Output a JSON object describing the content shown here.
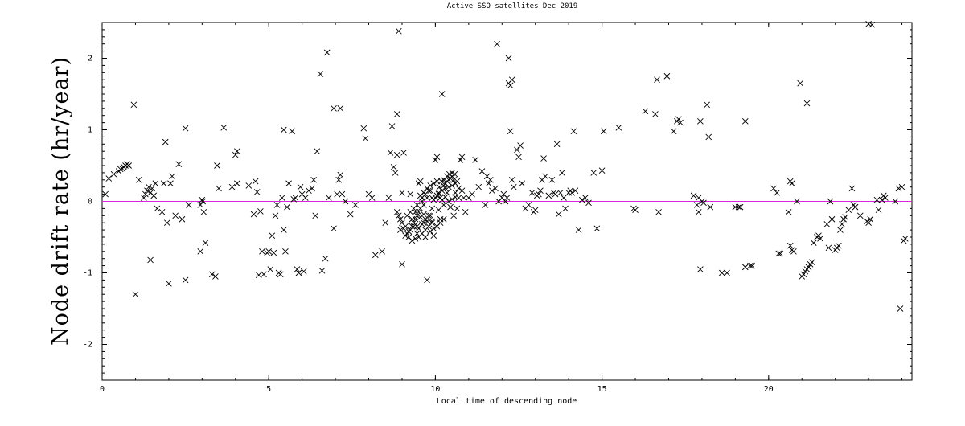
{
  "chart_data": {
    "type": "scatter",
    "title": "Active SSO satellites Dec 2019",
    "xlabel": "Local time of descending node",
    "ylabel": "Node drift rate (hr/year)",
    "xlim": [
      0,
      24.3
    ],
    "ylim": [
      -2.5,
      2.5
    ],
    "xticks": [
      0,
      5,
      10,
      15,
      20
    ],
    "yticks": [
      -2,
      -1,
      0,
      1,
      2
    ],
    "grid": false,
    "reference_line": {
      "y": 0,
      "color": "#dd22dd"
    },
    "marker": "x",
    "points": [
      [
        0.1,
        0.1
      ],
      [
        0.2,
        0.32
      ],
      [
        0.35,
        0.38
      ],
      [
        0.5,
        0.42
      ],
      [
        0.6,
        0.46
      ],
      [
        0.65,
        0.48
      ],
      [
        0.7,
        0.5
      ],
      [
        0.75,
        0.52
      ],
      [
        0.8,
        0.5
      ],
      [
        0.55,
        0.45
      ],
      [
        0.95,
        1.35
      ],
      [
        1.0,
        -1.3
      ],
      [
        1.1,
        0.3
      ],
      [
        1.25,
        0.05
      ],
      [
        1.3,
        0.1
      ],
      [
        1.35,
        0.15
      ],
      [
        1.4,
        0.2
      ],
      [
        1.45,
        0.12
      ],
      [
        1.5,
        0.18
      ],
      [
        1.55,
        0.08
      ],
      [
        1.6,
        0.25
      ],
      [
        1.45,
        -0.82
      ],
      [
        1.65,
        -0.1
      ],
      [
        1.8,
        -0.15
      ],
      [
        1.9,
        0.83
      ],
      [
        1.95,
        -0.3
      ],
      [
        1.85,
        0.25
      ],
      [
        2.0,
        -1.15
      ],
      [
        2.05,
        0.25
      ],
      [
        2.1,
        0.35
      ],
      [
        2.2,
        -0.2
      ],
      [
        2.3,
        0.52
      ],
      [
        2.4,
        -0.25
      ],
      [
        2.5,
        -1.1
      ],
      [
        2.5,
        1.02
      ],
      [
        2.6,
        -0.05
      ],
      [
        2.95,
        -0.05
      ],
      [
        3.0,
        0.02
      ],
      [
        3.02,
        0.0
      ],
      [
        3.05,
        -0.15
      ],
      [
        2.95,
        -0.7
      ],
      [
        3.1,
        -0.58
      ],
      [
        3.3,
        -1.02
      ],
      [
        3.4,
        -1.05
      ],
      [
        3.45,
        0.5
      ],
      [
        3.5,
        0.18
      ],
      [
        3.65,
        1.03
      ],
      [
        3.9,
        0.2
      ],
      [
        4.0,
        0.65
      ],
      [
        4.05,
        0.7
      ],
      [
        4.05,
        0.25
      ],
      [
        4.4,
        0.22
      ],
      [
        4.6,
        0.28
      ],
      [
        4.65,
        0.13
      ],
      [
        4.55,
        -0.18
      ],
      [
        4.7,
        -1.03
      ],
      [
        4.75,
        -0.14
      ],
      [
        4.8,
        -0.7
      ],
      [
        4.85,
        -1.02
      ],
      [
        4.95,
        -0.72
      ],
      [
        5.0,
        -0.7
      ],
      [
        5.05,
        -0.95
      ],
      [
        5.1,
        -0.48
      ],
      [
        5.15,
        -0.72
      ],
      [
        5.2,
        -0.2
      ],
      [
        5.25,
        -0.05
      ],
      [
        5.3,
        -1.0
      ],
      [
        5.35,
        -1.02
      ],
      [
        5.4,
        0.05
      ],
      [
        5.45,
        -0.4
      ],
      [
        5.45,
        1.0
      ],
      [
        5.5,
        -0.7
      ],
      [
        5.55,
        -0.08
      ],
      [
        5.6,
        0.25
      ],
      [
        5.7,
        0.98
      ],
      [
        5.75,
        0.03
      ],
      [
        5.8,
        0.05
      ],
      [
        5.85,
        -0.95
      ],
      [
        5.9,
        -1.0
      ],
      [
        5.95,
        0.2
      ],
      [
        6.0,
        0.1
      ],
      [
        6.05,
        -0.98
      ],
      [
        6.1,
        0.05
      ],
      [
        6.2,
        0.15
      ],
      [
        6.3,
        0.18
      ],
      [
        6.35,
        0.3
      ],
      [
        6.4,
        -0.2
      ],
      [
        6.45,
        0.7
      ],
      [
        6.55,
        1.78
      ],
      [
        6.6,
        -0.97
      ],
      [
        6.7,
        -0.8
      ],
      [
        6.75,
        2.08
      ],
      [
        6.8,
        0.05
      ],
      [
        6.95,
        1.3
      ],
      [
        6.95,
        -0.38
      ],
      [
        7.05,
        0.1
      ],
      [
        7.1,
        0.3
      ],
      [
        7.15,
        0.37
      ],
      [
        7.2,
        0.1
      ],
      [
        7.15,
        1.3
      ],
      [
        7.3,
        0.0
      ],
      [
        7.45,
        -0.18
      ],
      [
        7.6,
        -0.05
      ],
      [
        7.85,
        1.02
      ],
      [
        7.9,
        0.88
      ],
      [
        8.0,
        0.1
      ],
      [
        8.1,
        0.05
      ],
      [
        8.2,
        -0.75
      ],
      [
        8.4,
        -0.7
      ],
      [
        8.5,
        -0.3
      ],
      [
        8.6,
        0.05
      ],
      [
        8.65,
        0.68
      ],
      [
        8.7,
        1.05
      ],
      [
        8.75,
        0.48
      ],
      [
        8.8,
        0.4
      ],
      [
        8.85,
        1.22
      ],
      [
        8.85,
        0.65
      ],
      [
        8.9,
        2.38
      ],
      [
        8.95,
        -0.4
      ],
      [
        9.0,
        -0.88
      ],
      [
        9.0,
        0.12
      ],
      [
        9.05,
        0.68
      ],
      [
        9.1,
        -0.35
      ],
      [
        9.15,
        -0.2
      ],
      [
        9.2,
        -0.5
      ],
      [
        9.25,
        0.1
      ],
      [
        9.3,
        -0.25
      ],
      [
        9.35,
        -0.35
      ],
      [
        9.4,
        -0.15
      ],
      [
        9.45,
        -0.45
      ],
      [
        9.5,
        0.25
      ],
      [
        9.55,
        0.28
      ],
      [
        9.6,
        0.05
      ],
      [
        9.65,
        -0.3
      ],
      [
        9.7,
        -0.5
      ],
      [
        9.75,
        -1.1
      ],
      [
        9.8,
        0.15
      ],
      [
        9.85,
        -0.2
      ],
      [
        9.9,
        0.05
      ],
      [
        9.95,
        -0.38
      ],
      [
        10.0,
        0.58
      ],
      [
        10.05,
        0.62
      ],
      [
        10.1,
        0.1
      ],
      [
        10.15,
        0.05
      ],
      [
        10.2,
        1.5
      ],
      [
        10.25,
        0.22
      ],
      [
        10.3,
        0.25
      ],
      [
        10.35,
        0.28
      ],
      [
        10.4,
        0.3
      ],
      [
        10.45,
        0.32
      ],
      [
        10.5,
        0.35
      ],
      [
        10.55,
        0.3
      ],
      [
        10.6,
        0.12
      ],
      [
        10.65,
        0.28
      ],
      [
        10.7,
        0.05
      ],
      [
        10.75,
        0.58
      ],
      [
        10.8,
        0.62
      ],
      [
        10.85,
        0.05
      ],
      [
        10.9,
        -0.15
      ],
      [
        10.2,
        0.02
      ],
      [
        10.3,
        0.06
      ],
      [
        10.4,
        0.0
      ],
      [
        10.5,
        0.03
      ],
      [
        10.6,
        0.06
      ],
      [
        10.1,
        -0.12
      ],
      [
        10.15,
        -0.25
      ],
      [
        10.25,
        -0.05
      ],
      [
        10.45,
        -0.08
      ],
      [
        10.55,
        -0.2
      ],
      [
        10.65,
        -0.1
      ],
      [
        10.1,
        0.12
      ],
      [
        10.2,
        0.15
      ],
      [
        10.3,
        0.18
      ],
      [
        10.4,
        0.2
      ],
      [
        10.5,
        0.22
      ],
      [
        10.6,
        0.25
      ],
      [
        10.7,
        0.18
      ],
      [
        10.8,
        0.15
      ],
      [
        10.05,
        0.08
      ],
      [
        10.35,
        0.12
      ],
      [
        10.42,
        0.38
      ],
      [
        10.5,
        0.4
      ],
      [
        10.58,
        0.38
      ],
      [
        10.35,
        0.35
      ],
      [
        10.25,
        0.3
      ],
      [
        10.18,
        0.28
      ],
      [
        10.12,
        0.2
      ],
      [
        10.0,
        0.05
      ],
      [
        9.95,
        0.02
      ],
      [
        9.9,
        -0.1
      ],
      [
        9.85,
        0.15
      ],
      [
        9.75,
        0.05
      ],
      [
        9.7,
        0.1
      ],
      [
        9.65,
        -0.05
      ],
      [
        9.6,
        0.0
      ],
      [
        9.55,
        -0.1
      ],
      [
        9.5,
        -0.15
      ],
      [
        9.45,
        -0.2
      ],
      [
        9.4,
        -0.25
      ],
      [
        9.35,
        -0.3
      ],
      [
        9.3,
        -0.35
      ],
      [
        9.25,
        -0.4
      ],
      [
        9.2,
        -0.42
      ],
      [
        9.15,
        -0.45
      ],
      [
        9.1,
        -0.48
      ],
      [
        9.05,
        -0.38
      ],
      [
        9.0,
        -0.3
      ],
      [
        8.95,
        -0.25
      ],
      [
        8.9,
        -0.2
      ],
      [
        8.85,
        -0.15
      ],
      [
        9.35,
        -0.1
      ],
      [
        9.45,
        -0.05
      ],
      [
        9.55,
        0.08
      ],
      [
        9.65,
        0.12
      ],
      [
        9.75,
        0.18
      ],
      [
        9.85,
        0.22
      ],
      [
        9.95,
        0.25
      ],
      [
        10.05,
        0.28
      ],
      [
        9.5,
        -0.38
      ],
      [
        9.6,
        -0.32
      ],
      [
        9.7,
        -0.25
      ],
      [
        9.8,
        -0.2
      ],
      [
        9.9,
        -0.28
      ],
      [
        9.3,
        -0.55
      ],
      [
        9.4,
        -0.52
      ],
      [
        9.5,
        -0.5
      ],
      [
        9.6,
        -0.45
      ],
      [
        9.7,
        -0.4
      ],
      [
        9.8,
        -0.35
      ],
      [
        9.9,
        -0.3
      ],
      [
        9.25,
        -0.15
      ],
      [
        9.45,
        -0.35
      ],
      [
        9.55,
        -0.22
      ],
      [
        9.65,
        -0.18
      ],
      [
        9.75,
        -0.28
      ],
      [
        9.85,
        -0.42
      ],
      [
        9.95,
        -0.48
      ],
      [
        10.05,
        -0.35
      ],
      [
        10.15,
        -0.3
      ],
      [
        10.25,
        -0.25
      ],
      [
        11.0,
        0.05
      ],
      [
        11.1,
        0.1
      ],
      [
        11.2,
        0.58
      ],
      [
        11.3,
        0.2
      ],
      [
        11.4,
        0.42
      ],
      [
        11.5,
        -0.05
      ],
      [
        11.55,
        0.35
      ],
      [
        11.6,
        0.25
      ],
      [
        11.65,
        0.3
      ],
      [
        11.7,
        0.15
      ],
      [
        11.8,
        0.18
      ],
      [
        11.85,
        2.2
      ],
      [
        11.9,
        0.0
      ],
      [
        12.0,
        0.05
      ],
      [
        12.05,
        0.1
      ],
      [
        12.1,
        0.0
      ],
      [
        12.15,
        0.05
      ],
      [
        12.2,
        2.0
      ],
      [
        12.2,
        1.65
      ],
      [
        12.25,
        1.62
      ],
      [
        12.3,
        1.7
      ],
      [
        12.25,
        0.98
      ],
      [
        12.3,
        0.3
      ],
      [
        12.35,
        0.2
      ],
      [
        12.45,
        0.72
      ],
      [
        12.5,
        0.62
      ],
      [
        12.55,
        0.78
      ],
      [
        12.6,
        0.25
      ],
      [
        12.7,
        -0.1
      ],
      [
        12.8,
        -0.05
      ],
      [
        12.9,
        0.12
      ],
      [
        12.95,
        -0.15
      ],
      [
        13.0,
        -0.12
      ],
      [
        13.05,
        0.08
      ],
      [
        13.1,
        0.1
      ],
      [
        13.15,
        0.15
      ],
      [
        13.2,
        0.3
      ],
      [
        13.25,
        0.6
      ],
      [
        13.3,
        0.35
      ],
      [
        13.4,
        0.08
      ],
      [
        13.5,
        0.3
      ],
      [
        13.55,
        0.12
      ],
      [
        13.6,
        0.1
      ],
      [
        13.65,
        0.8
      ],
      [
        13.7,
        -0.18
      ],
      [
        13.75,
        0.12
      ],
      [
        13.8,
        0.4
      ],
      [
        13.85,
        0.05
      ],
      [
        13.9,
        -0.1
      ],
      [
        14.0,
        0.12
      ],
      [
        14.05,
        0.15
      ],
      [
        14.1,
        0.12
      ],
      [
        14.15,
        0.98
      ],
      [
        14.2,
        0.15
      ],
      [
        14.3,
        -0.4
      ],
      [
        14.4,
        0.02
      ],
      [
        14.5,
        0.05
      ],
      [
        14.6,
        -0.02
      ],
      [
        14.75,
        0.4
      ],
      [
        14.85,
        -0.38
      ],
      [
        15.0,
        0.43
      ],
      [
        15.05,
        0.98
      ],
      [
        15.5,
        1.03
      ],
      [
        15.95,
        -0.1
      ],
      [
        16.0,
        -0.12
      ],
      [
        16.3,
        1.26
      ],
      [
        16.6,
        1.22
      ],
      [
        16.65,
        1.7
      ],
      [
        16.7,
        -0.15
      ],
      [
        16.95,
        1.75
      ],
      [
        17.15,
        0.98
      ],
      [
        17.25,
        1.12
      ],
      [
        17.3,
        1.15
      ],
      [
        17.35,
        1.1
      ],
      [
        17.75,
        0.08
      ],
      [
        17.85,
        -0.05
      ],
      [
        17.9,
        -0.15
      ],
      [
        17.95,
        -0.95
      ],
      [
        17.9,
        0.05
      ],
      [
        17.95,
        1.12
      ],
      [
        18.0,
        0.0
      ],
      [
        18.05,
        -0.02
      ],
      [
        18.15,
        1.35
      ],
      [
        18.2,
        0.9
      ],
      [
        18.25,
        -0.08
      ],
      [
        18.6,
        -1.0
      ],
      [
        18.75,
        -1.0
      ],
      [
        19.0,
        -0.08
      ],
      [
        19.1,
        -0.08
      ],
      [
        19.15,
        -0.08
      ],
      [
        19.3,
        1.12
      ],
      [
        19.3,
        -0.92
      ],
      [
        19.45,
        -0.9
      ],
      [
        19.5,
        -0.9
      ],
      [
        20.15,
        0.18
      ],
      [
        20.25,
        0.12
      ],
      [
        20.3,
        -0.73
      ],
      [
        20.35,
        -0.73
      ],
      [
        20.6,
        -0.15
      ],
      [
        20.65,
        0.28
      ],
      [
        20.7,
        0.25
      ],
      [
        20.65,
        -0.62
      ],
      [
        20.7,
        -0.68
      ],
      [
        20.75,
        -0.7
      ],
      [
        20.85,
        0.0
      ],
      [
        20.95,
        1.65
      ],
      [
        21.0,
        -1.05
      ],
      [
        21.05,
        -1.02
      ],
      [
        21.1,
        -0.98
      ],
      [
        21.15,
        -0.95
      ],
      [
        21.15,
        1.37
      ],
      [
        21.2,
        -0.92
      ],
      [
        21.25,
        -0.88
      ],
      [
        21.3,
        -0.85
      ],
      [
        21.35,
        -0.58
      ],
      [
        21.45,
        -0.5
      ],
      [
        21.5,
        -0.48
      ],
      [
        21.55,
        -0.52
      ],
      [
        21.75,
        -0.32
      ],
      [
        21.8,
        -0.65
      ],
      [
        21.85,
        0.0
      ],
      [
        21.9,
        -0.25
      ],
      [
        22.0,
        -0.68
      ],
      [
        22.05,
        -0.65
      ],
      [
        22.1,
        -0.62
      ],
      [
        22.15,
        -0.4
      ],
      [
        22.2,
        -0.32
      ],
      [
        22.25,
        -0.25
      ],
      [
        22.3,
        -0.22
      ],
      [
        22.4,
        -0.12
      ],
      [
        22.5,
        0.18
      ],
      [
        22.55,
        -0.05
      ],
      [
        22.6,
        -0.08
      ],
      [
        22.75,
        -0.2
      ],
      [
        22.95,
        -0.28
      ],
      [
        23.0,
        -0.3
      ],
      [
        23.05,
        -0.25
      ],
      [
        23.0,
        2.48
      ],
      [
        23.1,
        2.47
      ],
      [
        23.25,
        0.02
      ],
      [
        23.3,
        -0.12
      ],
      [
        23.4,
        0.02
      ],
      [
        23.45,
        0.08
      ],
      [
        23.5,
        0.05
      ],
      [
        23.8,
        0.0
      ],
      [
        23.9,
        0.18
      ],
      [
        23.95,
        -1.5
      ],
      [
        24.0,
        0.2
      ],
      [
        24.05,
        -0.55
      ],
      [
        24.1,
        -0.52
      ]
    ]
  }
}
